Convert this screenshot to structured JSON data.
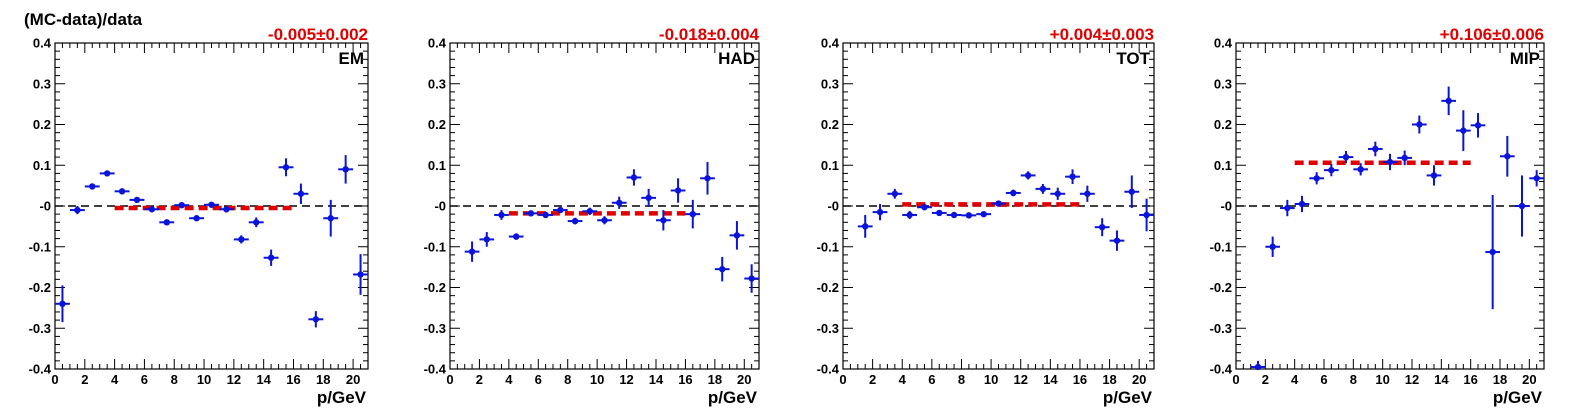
{
  "figure": {
    "ylabel": "(MC-data)/data"
  },
  "chart_data": [
    {
      "type": "scatter",
      "panel_label": "EM",
      "fit_label": "-0.005±0.002",
      "fit_value": -0.005,
      "fit_range": [
        4,
        16
      ],
      "xlabel": "p/GeV",
      "xlim": [
        0,
        21
      ],
      "ylim": [
        -0.4,
        0.4
      ],
      "xticks": [
        0,
        2,
        4,
        6,
        8,
        10,
        12,
        14,
        16,
        18,
        20
      ],
      "yticks": [
        -0.4,
        -0.3,
        -0.2,
        -0.1,
        0,
        0.1,
        0.2,
        0.3,
        0.4
      ],
      "ytick_labels": [
        "-0.4",
        "-0.3",
        "-0.2",
        "-0.1",
        "-0",
        "0.1",
        "0.2",
        "0.3",
        "0.4"
      ],
      "points": [
        {
          "x": 0.5,
          "y": -0.24,
          "err": 0.045
        },
        {
          "x": 1.5,
          "y": -0.01,
          "err": 0.01
        },
        {
          "x": 2.5,
          "y": 0.048,
          "err": 0.006
        },
        {
          "x": 3.5,
          "y": 0.08,
          "err": 0.006
        },
        {
          "x": 4.5,
          "y": 0.036,
          "err": 0.006
        },
        {
          "x": 5.5,
          "y": 0.015,
          "err": 0.006
        },
        {
          "x": 6.5,
          "y": -0.008,
          "err": 0.006
        },
        {
          "x": 7.5,
          "y": -0.04,
          "err": 0.006
        },
        {
          "x": 8.5,
          "y": 0.002,
          "err": 0.006
        },
        {
          "x": 9.5,
          "y": -0.03,
          "err": 0.006
        },
        {
          "x": 10.5,
          "y": 0.003,
          "err": 0.006
        },
        {
          "x": 11.5,
          "y": -0.008,
          "err": 0.008
        },
        {
          "x": 12.5,
          "y": -0.082,
          "err": 0.01
        },
        {
          "x": 13.5,
          "y": -0.04,
          "err": 0.012
        },
        {
          "x": 14.5,
          "y": -0.127,
          "err": 0.02
        },
        {
          "x": 15.5,
          "y": 0.095,
          "err": 0.022
        },
        {
          "x": 16.5,
          "y": 0.03,
          "err": 0.025
        },
        {
          "x": 17.5,
          "y": -0.278,
          "err": 0.02
        },
        {
          "x": 18.5,
          "y": -0.03,
          "err": 0.045
        },
        {
          "x": 19.5,
          "y": 0.09,
          "err": 0.035
        },
        {
          "x": 20.5,
          "y": -0.168,
          "err": 0.05
        }
      ]
    },
    {
      "type": "scatter",
      "panel_label": "HAD",
      "fit_label": "-0.018±0.004",
      "fit_value": -0.018,
      "fit_range": [
        4,
        16
      ],
      "xlabel": "p/GeV",
      "xlim": [
        0,
        21
      ],
      "ylim": [
        -0.4,
        0.4
      ],
      "xticks": [
        0,
        2,
        4,
        6,
        8,
        10,
        12,
        14,
        16,
        18,
        20
      ],
      "yticks": [
        -0.4,
        -0.3,
        -0.2,
        -0.1,
        0,
        0.1,
        0.2,
        0.3,
        0.4
      ],
      "ytick_labels": [
        "-0.4",
        "-0.3",
        "-0.2",
        "-0.1",
        "-0",
        "0.1",
        "0.2",
        "0.3",
        "0.4"
      ],
      "points": [
        {
          "x": 1.5,
          "y": -0.112,
          "err": 0.025
        },
        {
          "x": 2.5,
          "y": -0.082,
          "err": 0.018
        },
        {
          "x": 3.5,
          "y": -0.022,
          "err": 0.012
        },
        {
          "x": 4.5,
          "y": -0.075,
          "err": 0.008
        },
        {
          "x": 5.5,
          "y": -0.018,
          "err": 0.007
        },
        {
          "x": 6.5,
          "y": -0.022,
          "err": 0.007
        },
        {
          "x": 7.5,
          "y": -0.01,
          "err": 0.007
        },
        {
          "x": 8.5,
          "y": -0.037,
          "err": 0.008
        },
        {
          "x": 9.5,
          "y": -0.013,
          "err": 0.009
        },
        {
          "x": 10.5,
          "y": -0.035,
          "err": 0.01
        },
        {
          "x": 11.5,
          "y": 0.008,
          "err": 0.015
        },
        {
          "x": 12.5,
          "y": 0.07,
          "err": 0.02
        },
        {
          "x": 13.5,
          "y": 0.02,
          "err": 0.022
        },
        {
          "x": 14.5,
          "y": -0.035,
          "err": 0.025
        },
        {
          "x": 15.5,
          "y": 0.038,
          "err": 0.03
        },
        {
          "x": 16.5,
          "y": -0.02,
          "err": 0.035
        },
        {
          "x": 17.5,
          "y": 0.068,
          "err": 0.04
        },
        {
          "x": 18.5,
          "y": -0.155,
          "err": 0.03
        },
        {
          "x": 19.5,
          "y": -0.072,
          "err": 0.035
        },
        {
          "x": 20.5,
          "y": -0.178,
          "err": 0.035
        }
      ]
    },
    {
      "type": "scatter",
      "panel_label": "TOT",
      "fit_label": "+0.004±0.003",
      "fit_value": 0.004,
      "fit_range": [
        4,
        16
      ],
      "xlabel": "p/GeV",
      "xlim": [
        0,
        21
      ],
      "ylim": [
        -0.4,
        0.4
      ],
      "xticks": [
        0,
        2,
        4,
        6,
        8,
        10,
        12,
        14,
        16,
        18,
        20
      ],
      "yticks": [
        -0.4,
        -0.3,
        -0.2,
        -0.1,
        0,
        0.1,
        0.2,
        0.3,
        0.4
      ],
      "ytick_labels": [
        "-0.4",
        "-0.3",
        "-0.2",
        "-0.1",
        "-0",
        "0.1",
        "0.2",
        "0.3",
        "0.4"
      ],
      "points": [
        {
          "x": 1.5,
          "y": -0.05,
          "err": 0.028
        },
        {
          "x": 2.5,
          "y": -0.015,
          "err": 0.02
        },
        {
          "x": 3.5,
          "y": 0.03,
          "err": 0.012
        },
        {
          "x": 4.5,
          "y": -0.022,
          "err": 0.01
        },
        {
          "x": 5.5,
          "y": -0.003,
          "err": 0.007
        },
        {
          "x": 6.5,
          "y": -0.017,
          "err": 0.006
        },
        {
          "x": 7.5,
          "y": -0.022,
          "err": 0.006
        },
        {
          "x": 8.5,
          "y": -0.023,
          "err": 0.006
        },
        {
          "x": 9.5,
          "y": -0.02,
          "err": 0.006
        },
        {
          "x": 10.5,
          "y": 0.006,
          "err": 0.006
        },
        {
          "x": 11.5,
          "y": 0.032,
          "err": 0.008
        },
        {
          "x": 12.5,
          "y": 0.075,
          "err": 0.01
        },
        {
          "x": 13.5,
          "y": 0.042,
          "err": 0.012
        },
        {
          "x": 14.5,
          "y": 0.03,
          "err": 0.015
        },
        {
          "x": 15.5,
          "y": 0.072,
          "err": 0.018
        },
        {
          "x": 16.5,
          "y": 0.03,
          "err": 0.02
        },
        {
          "x": 17.5,
          "y": -0.052,
          "err": 0.022
        },
        {
          "x": 18.5,
          "y": -0.085,
          "err": 0.025
        },
        {
          "x": 19.5,
          "y": 0.035,
          "err": 0.04
        },
        {
          "x": 20.5,
          "y": -0.022,
          "err": 0.04
        }
      ]
    },
    {
      "type": "scatter",
      "panel_label": "MIP",
      "fit_label": "+0.106±0.006",
      "fit_value": 0.106,
      "fit_range": [
        4,
        16
      ],
      "xlabel": "p/GeV",
      "xlim": [
        0,
        21
      ],
      "ylim": [
        -0.4,
        0.4
      ],
      "xticks": [
        0,
        2,
        4,
        6,
        8,
        10,
        12,
        14,
        16,
        18,
        20
      ],
      "yticks": [
        -0.4,
        -0.3,
        -0.2,
        -0.1,
        0,
        0.1,
        0.2,
        0.3,
        0.4
      ],
      "ytick_labels": [
        "-0.4",
        "-0.3",
        "-0.2",
        "-0.1",
        "-0",
        "0.1",
        "0.2",
        "0.3",
        "0.4"
      ],
      "points": [
        {
          "x": 1.5,
          "y": -0.395,
          "err": 0.015
        },
        {
          "x": 2.5,
          "y": -0.1,
          "err": 0.025
        },
        {
          "x": 3.5,
          "y": -0.005,
          "err": 0.02
        },
        {
          "x": 4.5,
          "y": 0.005,
          "err": 0.02
        },
        {
          "x": 5.5,
          "y": 0.068,
          "err": 0.015
        },
        {
          "x": 6.5,
          "y": 0.088,
          "err": 0.015
        },
        {
          "x": 7.5,
          "y": 0.12,
          "err": 0.015
        },
        {
          "x": 8.5,
          "y": 0.09,
          "err": 0.015
        },
        {
          "x": 9.5,
          "y": 0.14,
          "err": 0.018
        },
        {
          "x": 10.5,
          "y": 0.108,
          "err": 0.02
        },
        {
          "x": 11.5,
          "y": 0.118,
          "err": 0.018
        },
        {
          "x": 12.5,
          "y": 0.2,
          "err": 0.022
        },
        {
          "x": 13.5,
          "y": 0.075,
          "err": 0.025
        },
        {
          "x": 14.5,
          "y": 0.258,
          "err": 0.035
        },
        {
          "x": 15.5,
          "y": 0.185,
          "err": 0.05
        },
        {
          "x": 16.5,
          "y": 0.198,
          "err": 0.03
        },
        {
          "x": 17.5,
          "y": -0.113,
          "err": 0.14
        },
        {
          "x": 18.5,
          "y": 0.122,
          "err": 0.05
        },
        {
          "x": 19.5,
          "y": 0.0,
          "err": 0.075
        },
        {
          "x": 20.5,
          "y": 0.068,
          "err": 0.02
        }
      ]
    }
  ]
}
